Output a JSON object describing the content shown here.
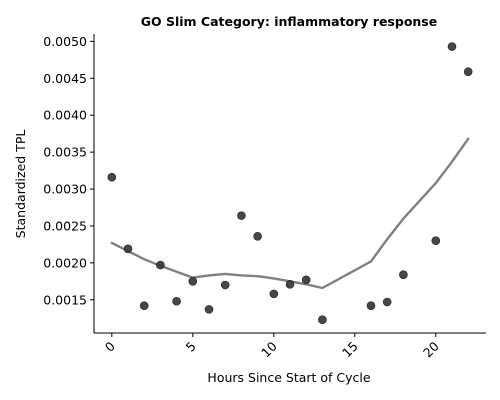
{
  "chart_data": {
    "type": "scatter",
    "title": "GO Slim Category: inflammatory response",
    "xlabel": "Hours Since Start of Cycle",
    "ylabel": "Standardized TPL",
    "xlim": [
      -1.1,
      23.1
    ],
    "ylim": [
      0.00105,
      0.0051
    ],
    "xticks": [
      0,
      5,
      10,
      15,
      20
    ],
    "yticks": [
      0.0015,
      0.002,
      0.0025,
      0.003,
      0.0035,
      0.004,
      0.0045,
      0.005
    ],
    "ytick_labels": [
      "0.0015",
      "0.0020",
      "0.0025",
      "0.0030",
      "0.0035",
      "0.0040",
      "0.0045",
      "0.0050"
    ],
    "grid": false,
    "points": {
      "x": [
        0,
        1,
        2,
        3,
        4,
        5,
        6,
        7,
        8,
        9,
        10,
        11,
        12,
        13,
        16,
        17,
        18,
        20,
        21,
        22
      ],
      "y": [
        0.00316,
        0.00219,
        0.00142,
        0.00197,
        0.00148,
        0.00175,
        0.00137,
        0.0017,
        0.00264,
        0.00236,
        0.00158,
        0.00171,
        0.00177,
        0.00123,
        0.00142,
        0.00147,
        0.00184,
        0.0023,
        0.00493,
        0.00459
      ]
    },
    "trend": {
      "x": [
        0,
        1,
        2,
        3,
        4,
        5,
        6,
        7,
        8,
        9,
        10,
        11,
        12,
        13,
        16,
        17,
        18,
        20,
        21,
        22
      ],
      "y": [
        0.00227,
        0.00216,
        0.00205,
        0.00196,
        0.00188,
        0.0018,
        0.00183,
        0.00185,
        0.00183,
        0.00182,
        0.00179,
        0.00175,
        0.00171,
        0.00166,
        0.00202,
        0.00232,
        0.0026,
        0.00308,
        0.00337,
        0.00368
      ]
    },
    "colors": {
      "points": "#333333",
      "trend": "#808080"
    }
  }
}
